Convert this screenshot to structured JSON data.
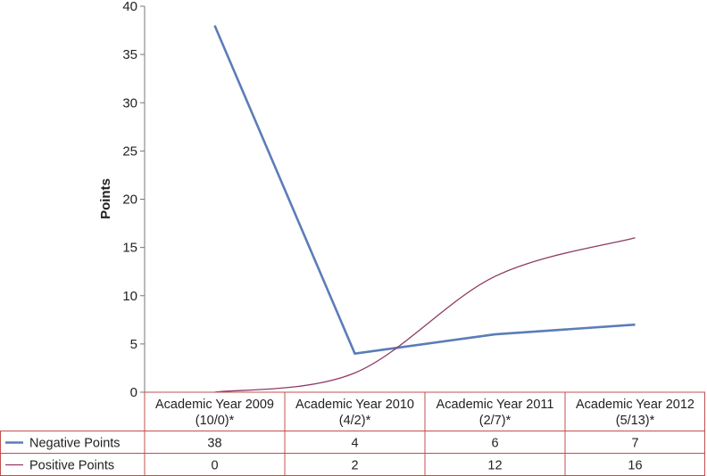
{
  "chart_data": {
    "type": "line",
    "title": "",
    "xlabel": "",
    "ylabel": "Points",
    "ylim": [
      0,
      40
    ],
    "yticks": [
      0,
      5,
      10,
      15,
      20,
      25,
      30,
      35,
      40
    ],
    "categories": [
      [
        "Academic Year 2009",
        "(10/0)*"
      ],
      [
        "Academic Year 2010",
        "(4/2)*"
      ],
      [
        "Academic Year 2011",
        "(2/7)*"
      ],
      [
        "Academic Year 2012",
        "(5/13)*"
      ]
    ],
    "series": [
      {
        "name": "Negative Points",
        "values": [
          38,
          4,
          6,
          7
        ],
        "color": "#5b7db8",
        "smooth": false
      },
      {
        "name": "Positive Points",
        "values": [
          0,
          2,
          12,
          16
        ],
        "color": "#8e3a63",
        "smooth": true
      }
    ],
    "grid": false,
    "legend_placement": "data-table-below",
    "table_border_color": "#c0504d"
  }
}
